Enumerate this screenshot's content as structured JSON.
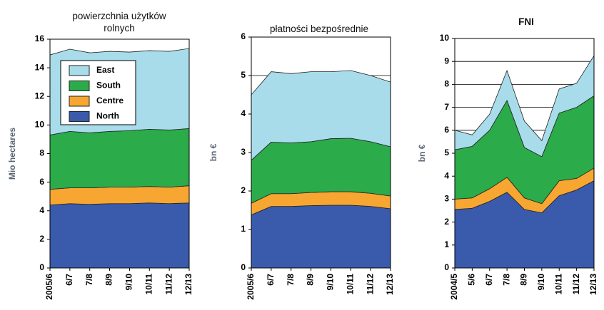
{
  "chart_data": [
    {
      "type": "area",
      "stacked": true,
      "title": "powierzchnia użytków rolnych",
      "title_bold": false,
      "y_label": "Mio hectares",
      "categories": [
        "2005/6",
        "6/7",
        "7/8",
        "8/9",
        "9/10",
        "10/11",
        "11/12",
        "12/13"
      ],
      "series": [
        {
          "name": "North",
          "color": "#3a5bab",
          "values": [
            4.4,
            4.5,
            4.45,
            4.5,
            4.5,
            4.55,
            4.5,
            4.55
          ]
        },
        {
          "name": "Centre",
          "color": "#f7a631",
          "values": [
            1.1,
            1.1,
            1.15,
            1.15,
            1.15,
            1.15,
            1.15,
            1.2
          ]
        },
        {
          "name": "South",
          "color": "#2bab4a",
          "values": [
            3.8,
            3.95,
            3.85,
            3.9,
            3.95,
            4.0,
            4.0,
            4.0
          ]
        },
        {
          "name": "East",
          "color": "#a8dcea",
          "values": [
            5.6,
            5.75,
            5.6,
            5.6,
            5.5,
            5.5,
            5.5,
            5.6
          ]
        }
      ],
      "ylim": [
        0,
        16
      ],
      "yticks": [
        0,
        2,
        4,
        6,
        8,
        10,
        12,
        14,
        16
      ],
      "grid": false,
      "legend": "upper left"
    },
    {
      "type": "area",
      "stacked": true,
      "title": "płatności bezpośrednie",
      "title_bold": false,
      "y_label": "bn €",
      "categories": [
        "2005/6",
        "6/7",
        "7/8",
        "8/9",
        "9/10",
        "10/11",
        "11/12",
        "12/13"
      ],
      "series": [
        {
          "color": "#3a5bab",
          "values": [
            1.38,
            1.6,
            1.6,
            1.62,
            1.63,
            1.63,
            1.6,
            1.54
          ]
        },
        {
          "color": "#f7a631",
          "values": [
            0.3,
            0.33,
            0.33,
            0.34,
            0.35,
            0.35,
            0.34,
            0.33
          ]
        },
        {
          "color": "#2bab4a",
          "values": [
            1.12,
            1.34,
            1.32,
            1.32,
            1.38,
            1.39,
            1.34,
            1.28
          ]
        },
        {
          "color": "#a8dcea",
          "values": [
            1.7,
            1.83,
            1.8,
            1.82,
            1.74,
            1.76,
            1.72,
            1.68
          ]
        }
      ],
      "ylim": [
        0,
        6
      ],
      "yticks": [
        0,
        1,
        2,
        3,
        4,
        5,
        6
      ],
      "grid": true
    },
    {
      "type": "area",
      "stacked": true,
      "title": "FNI",
      "title_bold": true,
      "y_label": "bn €",
      "categories": [
        "2004/5",
        "5/6",
        "6/7",
        "7/8",
        "8/9",
        "9/10",
        "10/11",
        "11/12",
        "12/13"
      ],
      "series": [
        {
          "color": "#3a5bab",
          "values": [
            2.55,
            2.6,
            2.9,
            3.3,
            2.55,
            2.4,
            3.15,
            3.4,
            3.8
          ]
        },
        {
          "color": "#f7a631",
          "values": [
            0.45,
            0.45,
            0.55,
            0.65,
            0.5,
            0.4,
            0.65,
            0.5,
            0.55
          ]
        },
        {
          "color": "#2bab4a",
          "values": [
            2.15,
            2.25,
            2.55,
            3.35,
            2.2,
            2.05,
            2.95,
            3.1,
            3.15
          ]
        },
        {
          "color": "#a8dcea",
          "values": [
            0.85,
            0.5,
            0.7,
            1.3,
            1.15,
            0.7,
            1.05,
            1.05,
            1.75
          ]
        }
      ],
      "ylim": [
        0,
        10
      ],
      "yticks": [
        0,
        1,
        2,
        3,
        4,
        5,
        6,
        7,
        8,
        9,
        10
      ],
      "grid": true
    }
  ]
}
